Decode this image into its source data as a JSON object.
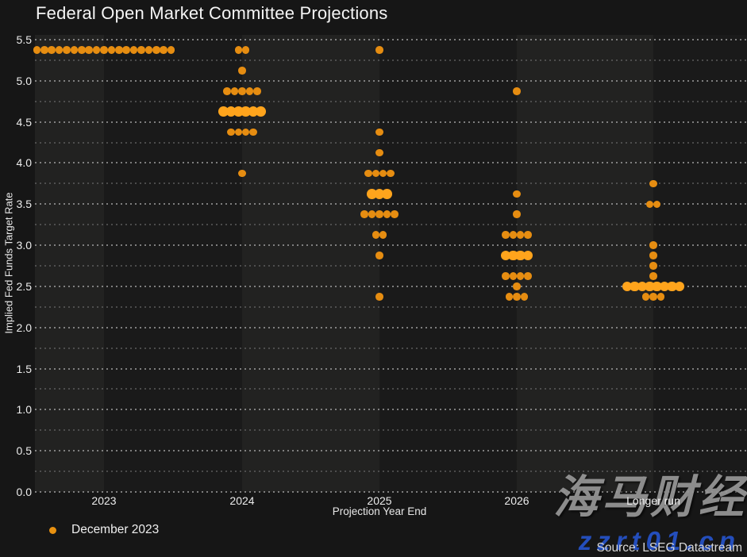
{
  "title": "Federal Open Market Committee Projections",
  "y_axis": {
    "label": "Implied Fed Funds Target Rate",
    "ticks": [
      "5.5",
      "5.0",
      "4.5",
      "4.0",
      "3.5",
      "3.0",
      "2.5",
      "2.0",
      "1.5",
      "1.0",
      "0.5",
      "0.0"
    ]
  },
  "x_axis": {
    "label": "Projection Year End",
    "categories": [
      "2023",
      "2024",
      "2025",
      "2026",
      "Longer run"
    ]
  },
  "legend": {
    "label": "December 2023",
    "marker_color": "#e89110"
  },
  "source": "Source: LSEG Datastream",
  "watermark": {
    "cjk": "海马财经",
    "domain": "zzrt01.cn"
  },
  "colors": {
    "background": "#161616",
    "band_light": "#222221",
    "band_dark": "#1a1a1a",
    "dot": "#e68d11",
    "dot_median": "#ffa41c",
    "text": "#ececec"
  },
  "chart_data": {
    "type": "scatter",
    "subtype": "fomc-dot-plot",
    "title": "Federal Open Market Committee Projections",
    "xlabel": "Projection Year End",
    "ylabel": "Implied Fed Funds Target Rate",
    "ylim": [
      0,
      5.5
    ],
    "y_tick_step": 0.5,
    "grid_minor_step": 0.25,
    "legend_position": "bottom-left",
    "series_name": "December 2023",
    "columns": [
      {
        "category": "2023",
        "dots": [
          {
            "rate": 5.375,
            "count": 19,
            "median": false
          }
        ]
      },
      {
        "category": "2024",
        "dots": [
          {
            "rate": 5.375,
            "count": 2,
            "median": false
          },
          {
            "rate": 5.125,
            "count": 1,
            "median": false
          },
          {
            "rate": 4.875,
            "count": 5,
            "median": false
          },
          {
            "rate": 4.625,
            "count": 6,
            "median": true
          },
          {
            "rate": 4.375,
            "count": 4,
            "median": false
          },
          {
            "rate": 3.875,
            "count": 1,
            "median": false
          }
        ]
      },
      {
        "category": "2025",
        "dots": [
          {
            "rate": 5.375,
            "count": 1,
            "median": false
          },
          {
            "rate": 4.375,
            "count": 1,
            "median": false
          },
          {
            "rate": 4.125,
            "count": 1,
            "median": false
          },
          {
            "rate": 3.875,
            "count": 4,
            "median": false
          },
          {
            "rate": 3.625,
            "count": 3,
            "median": true
          },
          {
            "rate": 3.375,
            "count": 5,
            "median": false
          },
          {
            "rate": 3.125,
            "count": 2,
            "median": false
          },
          {
            "rate": 2.875,
            "count": 1,
            "median": false
          },
          {
            "rate": 2.375,
            "count": 1,
            "median": false
          }
        ]
      },
      {
        "category": "2026",
        "dots": [
          {
            "rate": 4.875,
            "count": 1,
            "median": false
          },
          {
            "rate": 3.625,
            "count": 1,
            "median": false
          },
          {
            "rate": 3.375,
            "count": 1,
            "median": false
          },
          {
            "rate": 3.125,
            "count": 4,
            "median": false
          },
          {
            "rate": 2.875,
            "count": 4,
            "median": true
          },
          {
            "rate": 2.625,
            "count": 4,
            "median": false
          },
          {
            "rate": 2.5,
            "count": 1,
            "median": false
          },
          {
            "rate": 2.375,
            "count": 3,
            "median": false
          }
        ]
      },
      {
        "category": "Longer run",
        "dots": [
          {
            "rate": 3.75,
            "count": 1,
            "median": false
          },
          {
            "rate": 3.5,
            "count": 2,
            "median": false
          },
          {
            "rate": 3.0,
            "count": 1,
            "median": false
          },
          {
            "rate": 2.875,
            "count": 1,
            "median": false
          },
          {
            "rate": 2.75,
            "count": 1,
            "median": false
          },
          {
            "rate": 2.625,
            "count": 1,
            "median": false
          },
          {
            "rate": 2.5,
            "count": 8,
            "median": true
          },
          {
            "rate": 2.375,
            "count": 3,
            "median": false
          }
        ]
      }
    ]
  }
}
